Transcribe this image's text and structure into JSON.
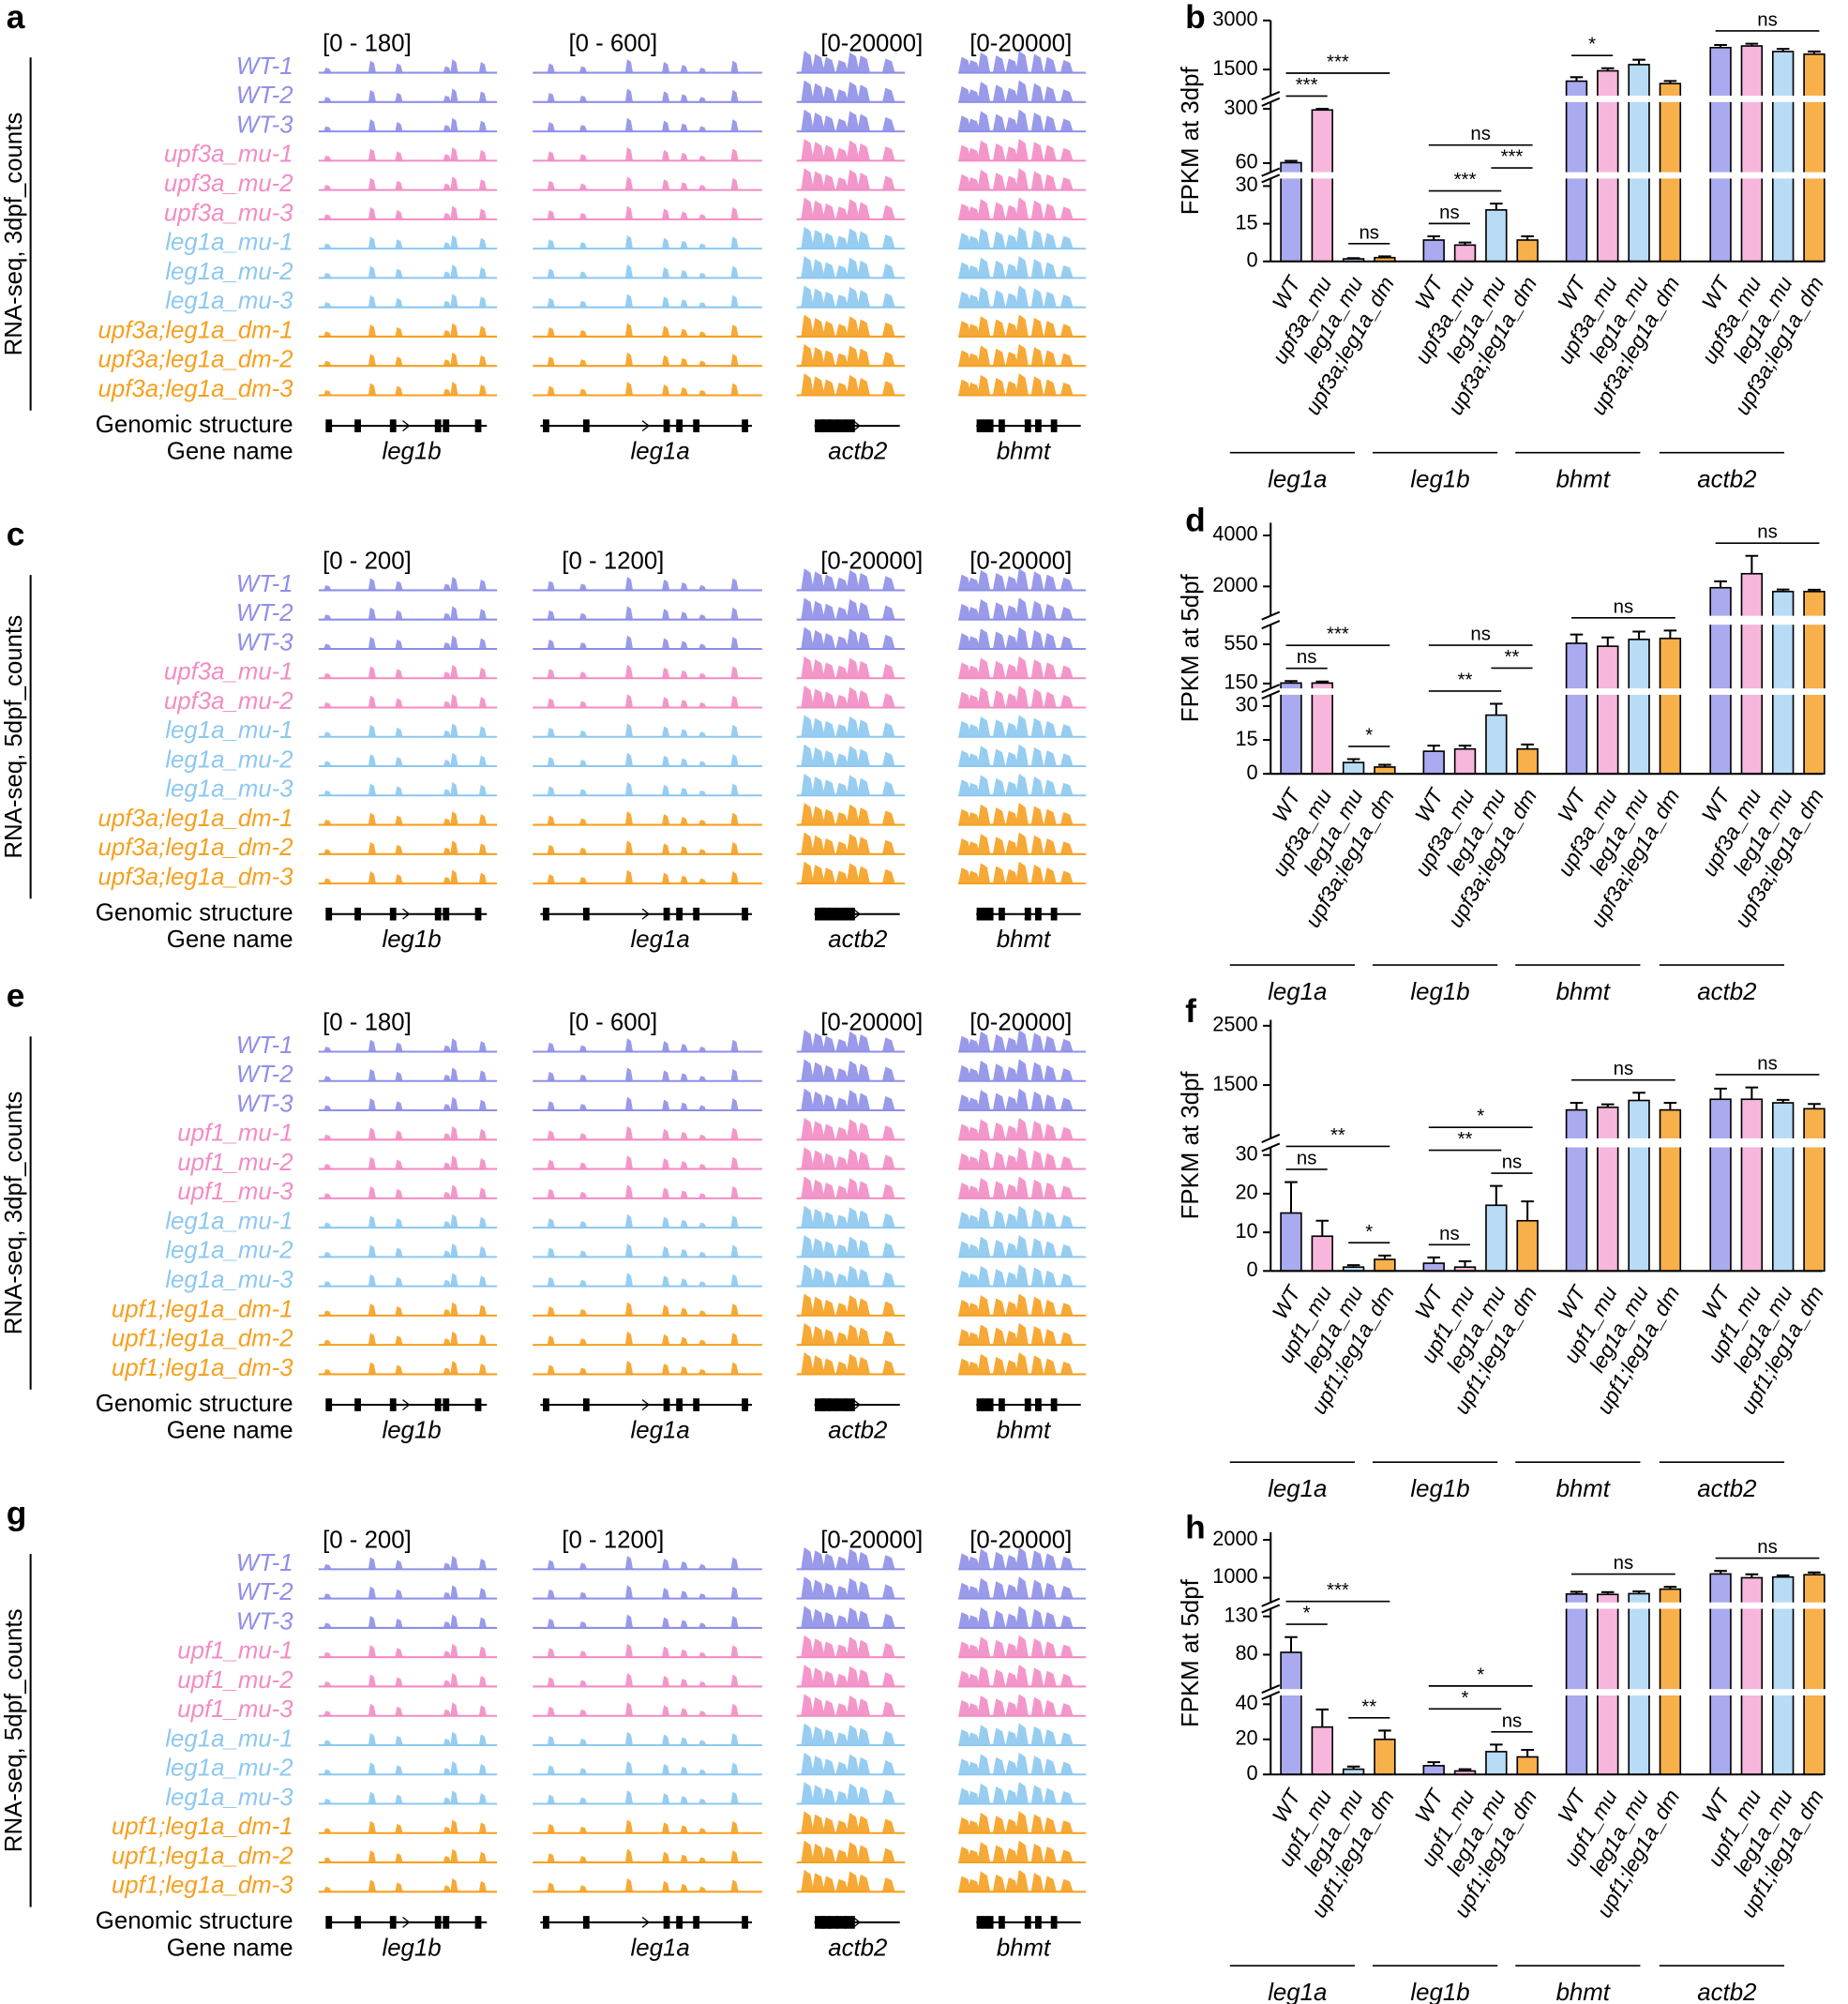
{
  "track_panels": [
    {
      "letter": "a",
      "ylabel": "RNA-seq, 3dpf_counts",
      "ranges": [
        "[0 - 180]",
        "[0 - 600]",
        "[0-20000]",
        "[0-20000]"
      ],
      "samples": [
        {
          "name": "WT-1",
          "color": "#8f8fe8"
        },
        {
          "name": "WT-2",
          "color": "#8f8fe8"
        },
        {
          "name": "WT-3",
          "color": "#8f8fe8"
        },
        {
          "name": "upf3a_mu-1",
          "color": "#f28cc4"
        },
        {
          "name": "upf3a_mu-2",
          "color": "#f28cc4"
        },
        {
          "name": "upf3a_mu-3",
          "color": "#f28cc4"
        },
        {
          "name": "leg1a_mu-1",
          "color": "#8cc8f0"
        },
        {
          "name": "leg1a_mu-2",
          "color": "#8cc8f0"
        },
        {
          "name": "leg1a_mu-3",
          "color": "#8cc8f0"
        },
        {
          "name": "upf3a;leg1a_dm-1",
          "color": "#f5a020"
        },
        {
          "name": "upf3a;leg1a_dm-2",
          "color": "#f5a020"
        },
        {
          "name": "upf3a;leg1a_dm-3",
          "color": "#f5a020"
        }
      ],
      "structure_label": "Genomic structure",
      "gene_label": "Gene name",
      "genes": [
        "leg1b",
        "leg1a",
        "actb2",
        "bhmt"
      ]
    },
    {
      "letter": "c",
      "ylabel": "RNA-seq, 5dpf_counts",
      "ranges": [
        "[0 - 200]",
        "[0 - 1200]",
        "[0-20000]",
        "[0-20000]"
      ],
      "samples": [
        {
          "name": "WT-1",
          "color": "#8f8fe8"
        },
        {
          "name": "WT-2",
          "color": "#8f8fe8"
        },
        {
          "name": "WT-3",
          "color": "#8f8fe8"
        },
        {
          "name": "upf3a_mu-1",
          "color": "#f28cc4"
        },
        {
          "name": "upf3a_mu-2",
          "color": "#f28cc4"
        },
        {
          "name": "leg1a_mu-1",
          "color": "#8cc8f0"
        },
        {
          "name": "leg1a_mu-2",
          "color": "#8cc8f0"
        },
        {
          "name": "leg1a_mu-3",
          "color": "#8cc8f0"
        },
        {
          "name": "upf3a;leg1a_dm-1",
          "color": "#f5a020"
        },
        {
          "name": "upf3a;leg1a_dm-2",
          "color": "#f5a020"
        },
        {
          "name": "upf3a;leg1a_dm-3",
          "color": "#f5a020"
        }
      ],
      "structure_label": "Genomic structure",
      "gene_label": "Gene name",
      "genes": [
        "leg1b",
        "leg1a",
        "actb2",
        "bhmt"
      ]
    },
    {
      "letter": "e",
      "ylabel": "RNA-seq, 3dpf_counts",
      "ranges": [
        "[0 - 180]",
        "[0 - 600]",
        "[0-20000]",
        "[0-20000]"
      ],
      "samples": [
        {
          "name": "WT-1",
          "color": "#8f8fe8"
        },
        {
          "name": "WT-2",
          "color": "#8f8fe8"
        },
        {
          "name": "WT-3",
          "color": "#8f8fe8"
        },
        {
          "name": "upf1_mu-1",
          "color": "#f28cc4"
        },
        {
          "name": "upf1_mu-2",
          "color": "#f28cc4"
        },
        {
          "name": "upf1_mu-3",
          "color": "#f28cc4"
        },
        {
          "name": "leg1a_mu-1",
          "color": "#8cc8f0"
        },
        {
          "name": "leg1a_mu-2",
          "color": "#8cc8f0"
        },
        {
          "name": "leg1a_mu-3",
          "color": "#8cc8f0"
        },
        {
          "name": "upf1;leg1a_dm-1",
          "color": "#f5a020"
        },
        {
          "name": "upf1;leg1a_dm-2",
          "color": "#f5a020"
        },
        {
          "name": "upf1;leg1a_dm-3",
          "color": "#f5a020"
        }
      ],
      "structure_label": "Genomic structure",
      "gene_label": "Gene name",
      "genes": [
        "leg1b",
        "leg1a",
        "actb2",
        "bhmt"
      ]
    },
    {
      "letter": "g",
      "ylabel": "RNA-seq, 5dpf_counts",
      "ranges": [
        "[0 - 200]",
        "[0 - 1200]",
        "[0-20000]",
        "[0-20000]"
      ],
      "samples": [
        {
          "name": "WT-1",
          "color": "#8f8fe8"
        },
        {
          "name": "WT-2",
          "color": "#8f8fe8"
        },
        {
          "name": "WT-3",
          "color": "#8f8fe8"
        },
        {
          "name": "upf1_mu-1",
          "color": "#f28cc4"
        },
        {
          "name": "upf1_mu-2",
          "color": "#f28cc4"
        },
        {
          "name": "upf1_mu-3",
          "color": "#f28cc4"
        },
        {
          "name": "leg1a_mu-1",
          "color": "#8cc8f0"
        },
        {
          "name": "leg1a_mu-2",
          "color": "#8cc8f0"
        },
        {
          "name": "leg1a_mu-3",
          "color": "#8cc8f0"
        },
        {
          "name": "upf1;leg1a_dm-1",
          "color": "#f5a020"
        },
        {
          "name": "upf1;leg1a_dm-2",
          "color": "#f5a020"
        },
        {
          "name": "upf1;leg1a_dm-3",
          "color": "#f5a020"
        }
      ],
      "structure_label": "Genomic structure",
      "gene_label": "Gene name",
      "genes": [
        "leg1b",
        "leg1a",
        "actb2",
        "bhmt"
      ]
    }
  ],
  "chart_data": [
    {
      "type": "bar",
      "panel": "b",
      "ylabel": "FPKM at 3dpf",
      "categories": [
        "leg1a",
        "leg1b",
        "bhmt",
        "actb2"
      ],
      "y_segments": [
        {
          "ylim": [
            0,
            33
          ],
          "yticks": [
            0,
            15,
            30
          ]
        },
        {
          "ylim": [
            20,
            330
          ],
          "yticks": [
            60,
            300
          ]
        },
        {
          "ylim": [
            700,
            3000
          ],
          "yticks": [
            1500,
            3000
          ]
        }
      ],
      "series": [
        {
          "name": "WT",
          "color": "#aaaaf0",
          "values": [
            62,
            8.5,
            1145,
            2170
          ],
          "errors": [
            8,
            1.5,
            120,
            80
          ]
        },
        {
          "name": "upf3a_mu",
          "color": "#f7b6dc",
          "values": [
            295,
            6.5,
            1460,
            2220
          ],
          "errors": [
            5,
            1,
            80,
            70
          ]
        },
        {
          "name": "leg1a_mu",
          "color": "#b8dcf5",
          "values": [
            1,
            20.5,
            1650,
            2050
          ],
          "errors": [
            0.3,
            2.5,
            150,
            80
          ]
        },
        {
          "name": "upf3a;leg1a_dm",
          "color": "#f7b04a",
          "values": [
            1.5,
            8.5,
            1070,
            1970
          ],
          "errors": [
            0.5,
            1.5,
            80,
            80
          ]
        }
      ],
      "comparisons": [
        {
          "label": "***",
          "category": "leg1a",
          "between": [
            "WT",
            "upf3a_mu"
          ]
        },
        {
          "label": "ns",
          "category": "leg1a",
          "between": [
            "leg1a_mu",
            "upf3a;leg1a_dm"
          ]
        },
        {
          "label": "***",
          "category": "leg1a",
          "between": [
            "WT",
            "upf3a;leg1a_dm"
          ]
        },
        {
          "label": "ns",
          "category": "leg1b",
          "between": [
            "WT",
            "upf3a_mu"
          ]
        },
        {
          "label": "***",
          "category": "leg1b",
          "between": [
            "WT",
            "leg1a_mu"
          ]
        },
        {
          "label": "***",
          "category": "leg1b",
          "between": [
            "leg1a_mu",
            "upf3a;leg1a_dm"
          ]
        },
        {
          "label": "ns",
          "category": "leg1b",
          "between": [
            "WT",
            "upf3a;leg1a_dm"
          ]
        },
        {
          "label": "*",
          "category": "bhmt",
          "between": [
            "WT",
            "upf3a_mu"
          ]
        },
        {
          "label": "ns",
          "category": "actb2",
          "between": [
            "WT",
            "upf3a;leg1a_dm"
          ]
        }
      ]
    },
    {
      "type": "bar",
      "panel": "d",
      "ylabel": "FPKM at 5dpf",
      "categories": [
        "leg1a",
        "leg1b",
        "bhmt",
        "actb2"
      ],
      "y_segments": [
        {
          "ylim": [
            0,
            35
          ],
          "yticks": [
            0,
            15,
            30
          ]
        },
        {
          "ylim": [
            100,
            750
          ],
          "yticks": [
            150,
            550
          ]
        },
        {
          "ylim": [
            850,
            4500
          ],
          "yticks": [
            2000,
            4000
          ]
        }
      ],
      "series": [
        {
          "name": "WT",
          "color": "#aaaaf0",
          "values": [
            155,
            10,
            560,
            1950
          ],
          "errors": [
            20,
            2.5,
            90,
            250
          ]
        },
        {
          "name": "upf3a_mu",
          "color": "#f7b6dc",
          "values": [
            155,
            11,
            530,
            2500
          ],
          "errors": [
            15,
            1.5,
            90,
            700
          ]
        },
        {
          "name": "leg1a_mu",
          "color": "#b8dcf5",
          "values": [
            5,
            26,
            600,
            1800
          ],
          "errors": [
            1.5,
            5,
            80,
            80
          ]
        },
        {
          "name": "upf3a;leg1a_dm",
          "color": "#f7b04a",
          "values": [
            3,
            11,
            610,
            1800
          ],
          "errors": [
            1,
            2,
            80,
            70
          ]
        }
      ],
      "comparisons": [
        {
          "label": "ns",
          "category": "leg1a",
          "between": [
            "WT",
            "upf3a_mu"
          ]
        },
        {
          "label": "*",
          "category": "leg1a",
          "between": [
            "leg1a_mu",
            "upf3a;leg1a_dm"
          ]
        },
        {
          "label": "***",
          "category": "leg1a",
          "between": [
            "WT",
            "upf3a;leg1a_dm"
          ]
        },
        {
          "label": "**",
          "category": "leg1b",
          "between": [
            "WT",
            "leg1a_mu"
          ]
        },
        {
          "label": "**",
          "category": "leg1b",
          "between": [
            "leg1a_mu",
            "upf3a;leg1a_dm"
          ]
        },
        {
          "label": "ns",
          "category": "leg1b",
          "between": [
            "WT",
            "upf3a;leg1a_dm"
          ]
        },
        {
          "label": "ns",
          "category": "bhmt",
          "between": [
            "WT",
            "upf3a;leg1a_dm"
          ]
        },
        {
          "label": "ns",
          "category": "actb2",
          "between": [
            "WT",
            "upf3a;leg1a_dm"
          ]
        }
      ]
    },
    {
      "type": "bar",
      "panel": "f",
      "ylabel": "FPKM at 3dpf",
      "categories": [
        "leg1a",
        "leg1b",
        "bhmt",
        "actb2"
      ],
      "y_segments": [
        {
          "ylim": [
            0,
            32
          ],
          "yticks": [
            0,
            10,
            20,
            30
          ]
        },
        {
          "ylim": [
            600,
            2600
          ],
          "yticks": [
            1500,
            2500
          ]
        }
      ],
      "series": [
        {
          "name": "WT",
          "color": "#aaaaf0",
          "values": [
            15,
            2,
            1080,
            1260
          ],
          "errors": [
            8,
            1.5,
            120,
            180
          ]
        },
        {
          "name": "upf1_mu",
          "color": "#f7b6dc",
          "values": [
            9,
            1,
            1125,
            1260
          ],
          "errors": [
            4,
            1.5,
            50,
            200
          ]
        },
        {
          "name": "leg1a_mu",
          "color": "#b8dcf5",
          "values": [
            1,
            17,
            1240,
            1200
          ],
          "errors": [
            0.5,
            5,
            130,
            50
          ]
        },
        {
          "name": "upf1;leg1a_dm",
          "color": "#f7b04a",
          "values": [
            3,
            13,
            1080,
            1100
          ],
          "errors": [
            1,
            5,
            120,
            80
          ]
        }
      ],
      "comparisons": [
        {
          "label": "ns",
          "category": "leg1a",
          "between": [
            "WT",
            "upf1_mu"
          ]
        },
        {
          "label": "*",
          "category": "leg1a",
          "between": [
            "leg1a_mu",
            "upf1;leg1a_dm"
          ]
        },
        {
          "label": "**",
          "category": "leg1a",
          "between": [
            "WT",
            "upf1;leg1a_dm"
          ]
        },
        {
          "label": "ns",
          "category": "leg1b",
          "between": [
            "WT",
            "upf1_mu"
          ]
        },
        {
          "label": "ns",
          "category": "leg1b",
          "between": [
            "leg1a_mu",
            "upf1;leg1a_dm"
          ]
        },
        {
          "label": "**",
          "category": "leg1b",
          "between": [
            "WT",
            "leg1a_mu"
          ]
        },
        {
          "label": "*",
          "category": "leg1b",
          "between": [
            "WT",
            "upf1;leg1a_dm"
          ]
        },
        {
          "label": "ns",
          "category": "bhmt",
          "between": [
            "WT",
            "upf1;leg1a_dm"
          ]
        },
        {
          "label": "ns",
          "category": "actb2",
          "between": [
            "WT",
            "upf1;leg1a_dm"
          ]
        }
      ]
    },
    {
      "type": "bar",
      "panel": "h",
      "ylabel": "FPKM at 5dpf",
      "categories": [
        "leg1a",
        "leg1b",
        "bhmt",
        "actb2"
      ],
      "y_segments": [
        {
          "ylim": [
            0,
            45
          ],
          "yticks": [
            0,
            20,
            40
          ]
        },
        {
          "ylim": [
            35,
            140
          ],
          "yticks": [
            80,
            130
          ]
        },
        {
          "ylim": [
            350,
            2200
          ],
          "yticks": [
            1000,
            2000
          ]
        }
      ],
      "series": [
        {
          "name": "WT",
          "color": "#aaaaf0",
          "values": [
            83,
            5,
            570,
            1100
          ],
          "errors": [
            20,
            2,
            60,
            80
          ]
        },
        {
          "name": "upf1_mu",
          "color": "#f7b6dc",
          "values": [
            27,
            2,
            560,
            1000
          ],
          "errors": [
            10,
            1,
            60,
            90
          ]
        },
        {
          "name": "leg1a_mu",
          "color": "#b8dcf5",
          "values": [
            3,
            13,
            580,
            1020
          ],
          "errors": [
            1.5,
            4,
            60,
            40
          ]
        },
        {
          "name": "upf1;leg1a_dm",
          "color": "#f7b04a",
          "values": [
            20,
            10,
            700,
            1080
          ],
          "errors": [
            5,
            4,
            60,
            60
          ]
        }
      ],
      "comparisons": [
        {
          "label": "*",
          "category": "leg1a",
          "between": [
            "WT",
            "upf1_mu"
          ]
        },
        {
          "label": "**",
          "category": "leg1a",
          "between": [
            "leg1a_mu",
            "upf1;leg1a_dm"
          ]
        },
        {
          "label": "***",
          "category": "leg1a",
          "between": [
            "WT",
            "upf1;leg1a_dm"
          ]
        },
        {
          "label": "ns",
          "category": "leg1b",
          "between": [
            "leg1a_mu",
            "upf1;leg1a_dm"
          ]
        },
        {
          "label": "*",
          "category": "leg1b",
          "between": [
            "WT",
            "leg1a_mu"
          ]
        },
        {
          "label": "*",
          "category": "leg1b",
          "between": [
            "WT",
            "upf1;leg1a_dm"
          ]
        },
        {
          "label": "ns",
          "category": "bhmt",
          "between": [
            "WT",
            "upf1;leg1a_dm"
          ]
        },
        {
          "label": "ns",
          "category": "actb2",
          "between": [
            "WT",
            "upf1;leg1a_dm"
          ]
        }
      ]
    }
  ]
}
